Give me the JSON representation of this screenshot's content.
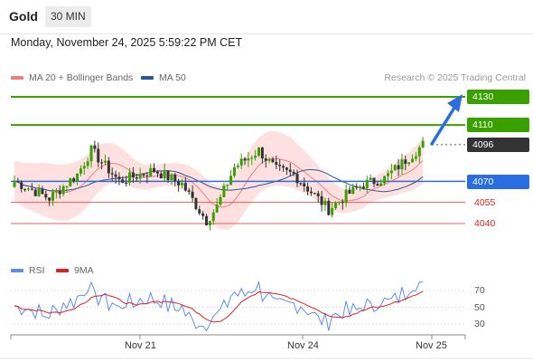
{
  "header": {
    "instrument": "Gold",
    "timeframe": "30 MIN"
  },
  "datetime": "Monday, November 24, 2025 5:59:22 PM CET",
  "legend": {
    "items": [
      {
        "label": "MA 20 + Bollinger Bands",
        "color": "#f08080"
      },
      {
        "label": "MA 50",
        "color": "#2b5797"
      }
    ],
    "credit": "Research © 2025 Trading Central"
  },
  "levels": [
    {
      "label": "4130",
      "value": 4130,
      "style": "green"
    },
    {
      "label": "4110",
      "value": 4110,
      "style": "green"
    },
    {
      "label": "4096",
      "value": 4096,
      "style": "dark"
    },
    {
      "label": "4070",
      "value": 4070,
      "style": "blue"
    },
    {
      "label": "4055",
      "value": 4055,
      "style": "red"
    },
    {
      "label": "4040",
      "value": 4040,
      "style": "red"
    }
  ],
  "rsi": {
    "legend": [
      {
        "label": "RSI",
        "color": "#5b8def"
      },
      {
        "label": "9MA",
        "color": "#e02020"
      }
    ],
    "ticks": [
      "70",
      "50",
      "30"
    ]
  },
  "xaxis": {
    "labels": [
      "Nov 21",
      "Nov 24",
      "Nov 25"
    ]
  },
  "colors": {
    "up": "#3aa000",
    "down": "#333333",
    "band": "#ffd6d6",
    "ma20": "#f08080",
    "ma50": "#2b5797",
    "accent": "#2a6de0"
  }
}
